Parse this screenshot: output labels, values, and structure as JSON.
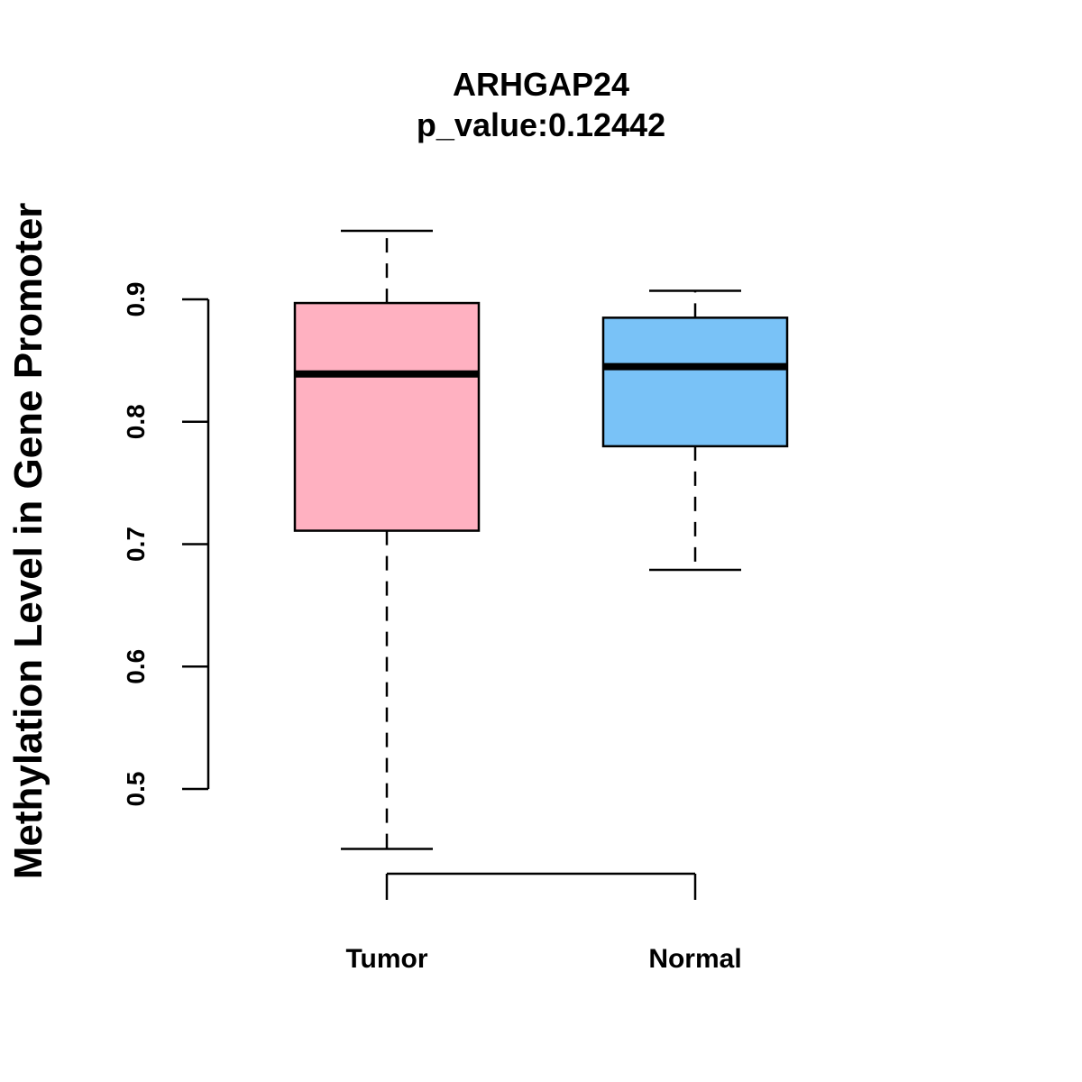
{
  "chart_data": {
    "type": "box",
    "title": "ARHGAP24",
    "subtitle": "p_value:0.12442",
    "ylabel": "Methylation Level in Gene Promoter",
    "xlabel": "",
    "ylim": [
      0.43,
      0.97
    ],
    "yticks": [
      0.5,
      0.6,
      0.7,
      0.8,
      0.9
    ],
    "ytick_labels": [
      "0.5",
      "0.6",
      "0.7",
      "0.8",
      "0.9"
    ],
    "categories": [
      "Tumor",
      "Normal"
    ],
    "boxes": [
      {
        "name": "Tumor",
        "whisker_low": 0.451,
        "q1": 0.711,
        "median": 0.839,
        "q3": 0.897,
        "whisker_high": 0.956,
        "color": "#FFB1C1"
      },
      {
        "name": "Normal",
        "whisker_low": 0.679,
        "q1": 0.78,
        "median": 0.845,
        "q3": 0.885,
        "whisker_high": 0.907,
        "color": "#79C2F7"
      }
    ],
    "grid": false,
    "legend": "none"
  }
}
